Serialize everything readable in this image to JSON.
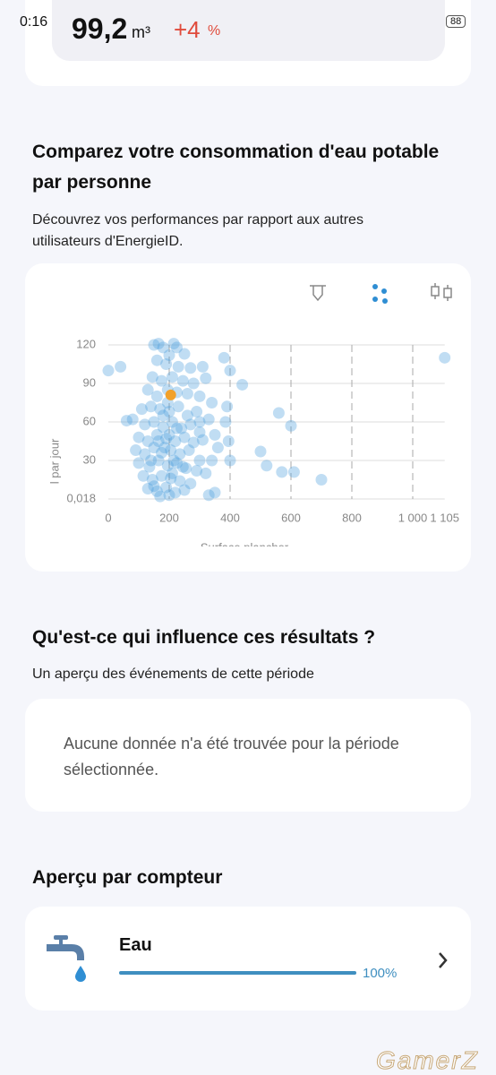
{
  "status_bar": {
    "time": "0:16",
    "battery": "88"
  },
  "summary": {
    "value": "99,2",
    "unit": "m³",
    "change": "+4",
    "change_unit": "%"
  },
  "comparison": {
    "title": "Comparez votre consommation d'eau potable par personne",
    "description": "Découvrez vos performances par rapport aux autres utilisateurs d'EnergieID."
  },
  "chart_data": {
    "type": "scatter",
    "xlabel": "Surface plancher",
    "ylabel": "l par jour",
    "xlim": [
      0,
      1105
    ],
    "ylim": [
      0.018,
      120
    ],
    "xticks": [
      0,
      200,
      400,
      600,
      800,
      {
        "value": 1000,
        "label": "1 000"
      },
      {
        "value": 1105,
        "label": "1 105"
      }
    ],
    "yticks": [
      {
        "value": 0.018,
        "label": "0,018"
      },
      30,
      60,
      90,
      120
    ],
    "grid": true,
    "series": [
      {
        "color": "#4a9fdc",
        "x": [
          150,
          165,
          180,
          215,
          225,
          250,
          200,
          160,
          190,
          230,
          270,
          310,
          145,
          175,
          210,
          245,
          280,
          320,
          130,
          160,
          195,
          225,
          260,
          300,
          340,
          110,
          140,
          170,
          200,
          230,
          260,
          290,
          330,
          390,
          80,
          120,
          150,
          180,
          210,
          240,
          270,
          300,
          350,
          385,
          100,
          130,
          160,
          190,
          220,
          250,
          280,
          310,
          360,
          395,
          90,
          120,
          150,
          175,
          205,
          235,
          265,
          300,
          340,
          400,
          100,
          135,
          165,
          195,
          225,
          255,
          290,
          320,
          115,
          145,
          175,
          205,
          235,
          270,
          130,
          160,
          190,
          220,
          250,
          330,
          350,
          170,
          200,
          150,
          185,
          200,
          215,
          180,
          195,
          210,
          165,
          225,
          140,
          245,
          300,
          0,
          40,
          1105,
          440,
          400,
          560,
          600,
          500,
          520,
          570,
          610,
          700,
          380,
          60
        ],
        "values": [
          120,
          121,
          118,
          121,
          118,
          113,
          112,
          108,
          105,
          103,
          102,
          103,
          95,
          92,
          95,
          92,
          90,
          94,
          85,
          80,
          85,
          83,
          82,
          80,
          75,
          70,
          72,
          70,
          68,
          72,
          65,
          68,
          62,
          72,
          62,
          58,
          60,
          56,
          60,
          55,
          58,
          52,
          50,
          60,
          48,
          45,
          50,
          47,
          45,
          48,
          44,
          46,
          40,
          45,
          38,
          35,
          40,
          36,
          38,
          35,
          38,
          30,
          30,
          30,
          28,
          25,
          30,
          26,
          28,
          24,
          22,
          20,
          18,
          15,
          18,
          16,
          14,
          12,
          8,
          6,
          9,
          5,
          7,
          3,
          5,
          2,
          3,
          10,
          40,
          50,
          30,
          65,
          75,
          20,
          45,
          55,
          30,
          25,
          60,
          100,
          103,
          110,
          89,
          100,
          67,
          57,
          37,
          26,
          21,
          21,
          15,
          110,
          61
        ]
      },
      {
        "color": "#f2a12a",
        "x": [
          205
        ],
        "values": [
          81
        ]
      }
    ]
  },
  "influence": {
    "title": "Qu'est-ce qui influence ces résultats ?",
    "description": "Un aperçu des événements de cette période",
    "empty_message": "Aucune donnée n'a été trouvée pour la période sélectionnée."
  },
  "meters": {
    "title": "Aperçu par compteur",
    "items": [
      {
        "name": "Eau",
        "progress": {
          "value": 100,
          "label": "100%"
        }
      }
    ]
  },
  "watermark": "GamerZ"
}
